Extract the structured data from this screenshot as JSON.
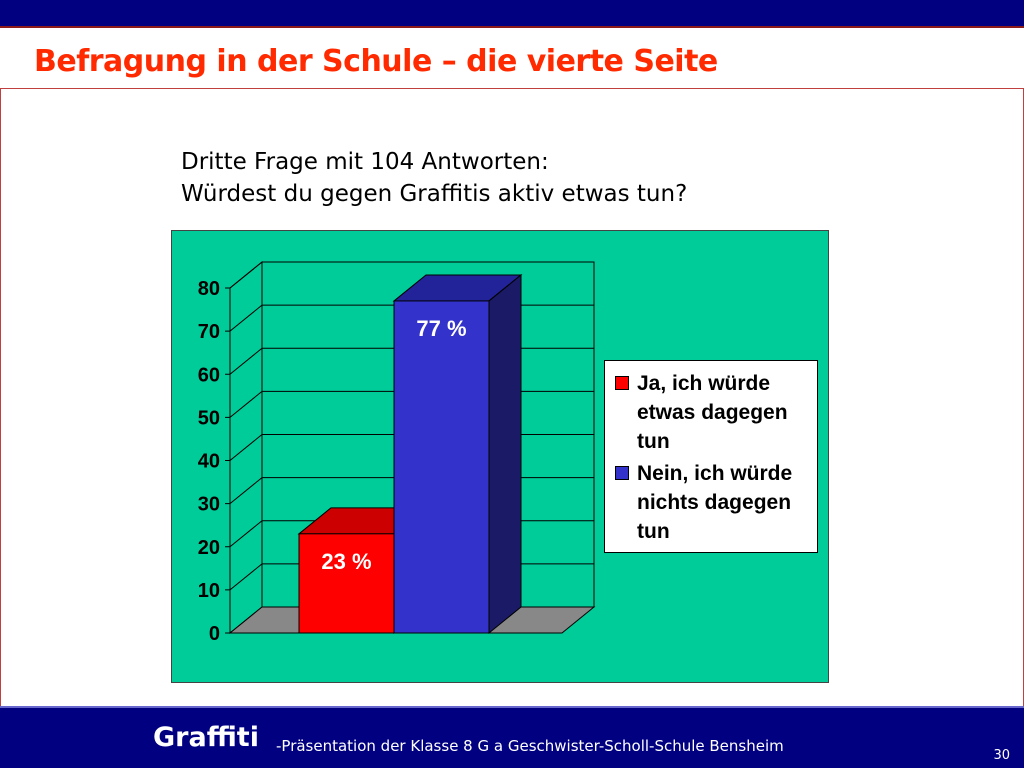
{
  "slide": {
    "title": "Befragung in der Schule – die vierte Seite",
    "question_line1": "Dritte Frage mit 104 Antworten:",
    "question_line2": "Würdest du gegen Graffitis aktiv etwas tun?"
  },
  "footer": {
    "logo": "Graffiti",
    "text": "-Präsentation der  Klasse 8 G a Geschwister-Scholl-Schule Bensheim",
    "page_number": "30"
  },
  "chart_data": {
    "type": "bar",
    "style": "3d-column",
    "title": "",
    "xlabel": "",
    "ylabel": "",
    "ylim": [
      0,
      80
    ],
    "yticks": [
      "0",
      "10",
      "20",
      "30",
      "40",
      "50",
      "60",
      "70",
      "80"
    ],
    "grid": true,
    "legend_position": "right",
    "series": [
      {
        "name": "Ja, ich würde etwas dagegen tun",
        "values": [
          23
        ],
        "data_label": "23 %",
        "color": "#ff0000"
      },
      {
        "name": "Nein, ich würde nichts dagegen tun",
        "values": [
          77
        ],
        "data_label": "77 %",
        "color": "#3333cc"
      }
    ]
  },
  "colors": {
    "plot_background": "#00cc99",
    "header_bar": "#000080",
    "title_text": "#ff2a00"
  }
}
